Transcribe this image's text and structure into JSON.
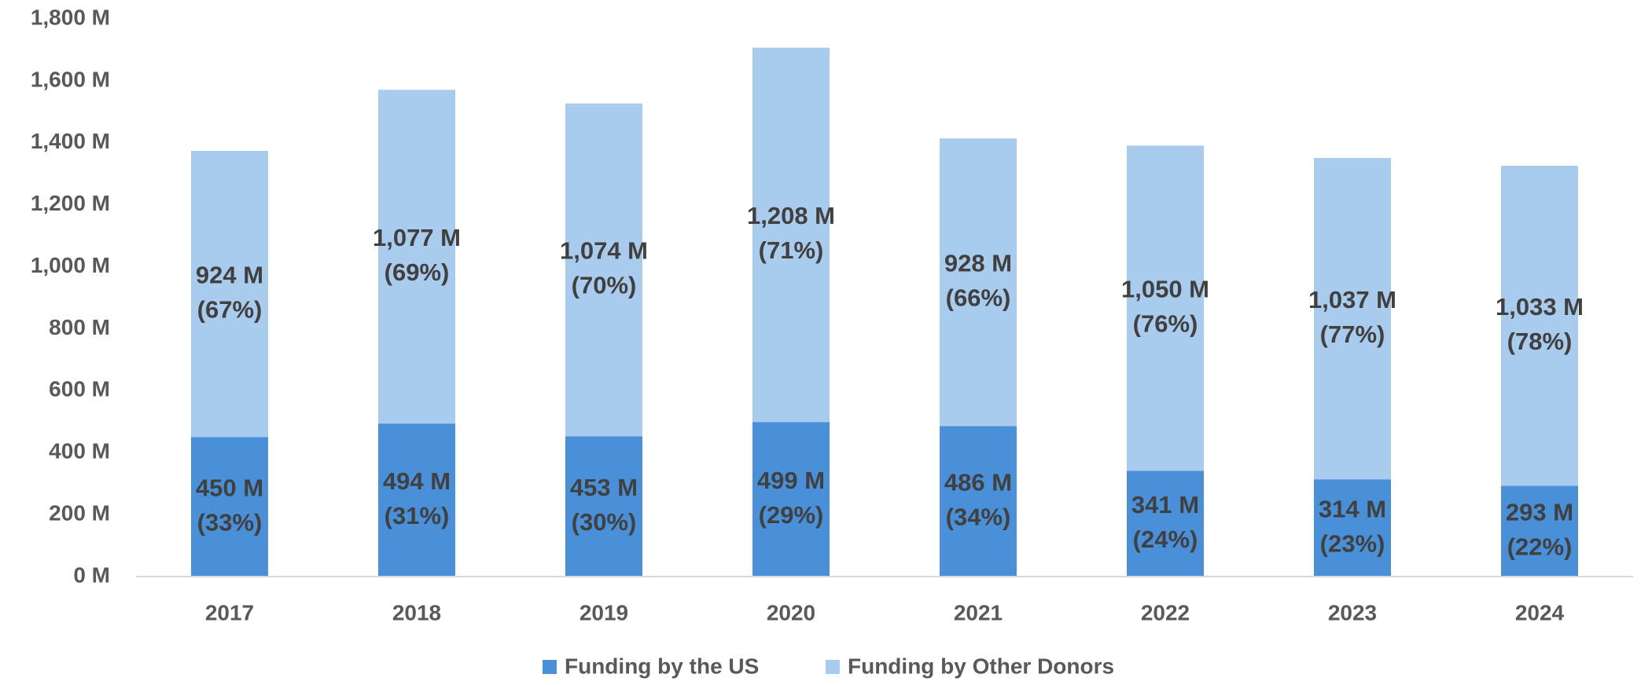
{
  "chart_data": {
    "type": "stacked-bar",
    "categories": [
      "2017",
      "2018",
      "2019",
      "2020",
      "2021",
      "2022",
      "2023",
      "2024"
    ],
    "series": [
      {
        "name": "Funding by the US",
        "color": "#4a90d9",
        "values": [
          450,
          494,
          453,
          499,
          486,
          341,
          314,
          293
        ],
        "value_labels": [
          "450 M",
          "494 M",
          "453 M",
          "499 M",
          "486 M",
          "341 M",
          "314 M",
          "293 M"
        ],
        "share_labels": [
          "(33%)",
          "(31%)",
          "(30%)",
          "(29%)",
          "(34%)",
          "(24%)",
          "(23%)",
          "(22%)"
        ]
      },
      {
        "name": "Funding by Other Donors",
        "color": "#a8cbee",
        "values": [
          924,
          1077,
          1074,
          1208,
          928,
          1050,
          1037,
          1033
        ],
        "value_labels": [
          "924 M",
          "1,077 M",
          "1,074 M",
          "1,208 M",
          "928 M",
          "1,050 M",
          "1,037 M",
          "1,033 M"
        ],
        "share_labels": [
          "(67%)",
          "(69%)",
          "(70%)",
          "(71%)",
          "(66%)",
          "(76%)",
          "(77%)",
          "(78%)"
        ]
      }
    ],
    "ylim": [
      0,
      1800
    ],
    "yticks": [
      {
        "value": 0,
        "label": "0 M"
      },
      {
        "value": 200,
        "label": "200 M"
      },
      {
        "value": 400,
        "label": "400 M"
      },
      {
        "value": 600,
        "label": "600 M"
      },
      {
        "value": 800,
        "label": "800 M"
      },
      {
        "value": 1000,
        "label": "1,000 M"
      },
      {
        "value": 1200,
        "label": "1,200 M"
      },
      {
        "value": 1400,
        "label": "1,400 M"
      },
      {
        "value": 1600,
        "label": "1,600 M"
      },
      {
        "value": 1800,
        "label": "1,800 M"
      }
    ],
    "grid": false,
    "legend": "bottom"
  }
}
